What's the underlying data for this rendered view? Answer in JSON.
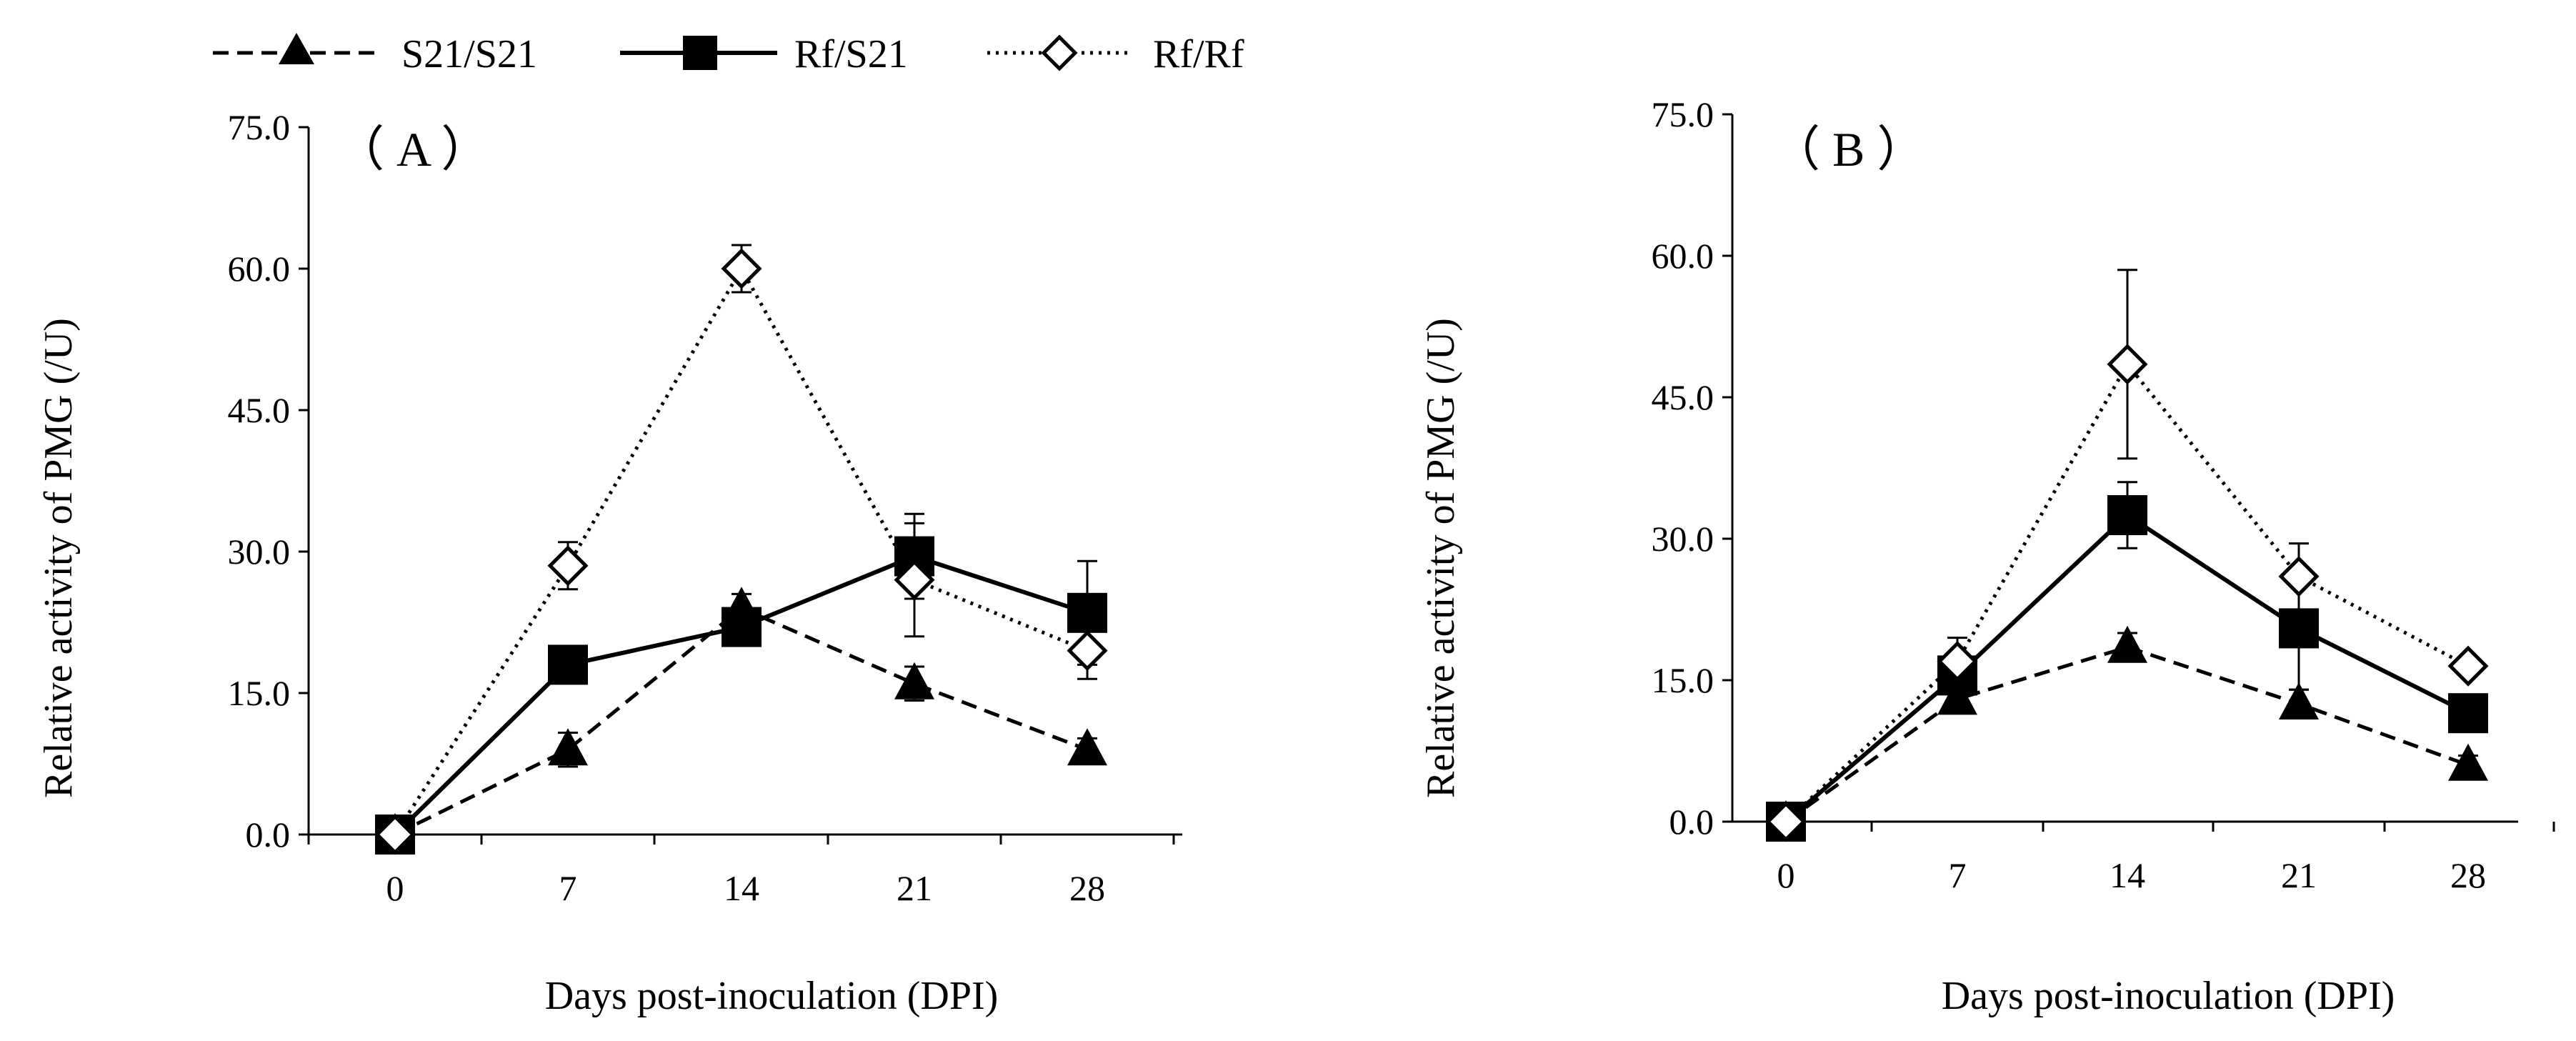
{
  "legend": [
    {
      "name": "S21/S21"
    },
    {
      "name": "Rf/S21"
    },
    {
      "name": "Rf/Rf"
    }
  ],
  "chart_data": [
    {
      "type": "line",
      "panel_label": "（ A ）",
      "xlabel": "Days post-inoculation (DPI)",
      "ylabel": "Relative activity of  PMG (/U)",
      "x": [
        0,
        7,
        14,
        21,
        28
      ],
      "x_tick_labels": [
        "0",
        "7",
        "14",
        "21",
        "28"
      ],
      "y_tick_labels": [
        "0.0",
        "15.0",
        "30.0",
        "45.0",
        "60.0",
        "75.0"
      ],
      "ylim": [
        0,
        75
      ],
      "series": [
        {
          "name": "S21/S21",
          "values": [
            0,
            9,
            24,
            16,
            9
          ],
          "errors": [
            0,
            1.8,
            1.5,
            1.8,
            1.2
          ]
        },
        {
          "name": "Rf/S21",
          "values": [
            0,
            18,
            22,
            29.5,
            23.5
          ],
          "errors": [
            0,
            1.0,
            1.5,
            4.5,
            5.5
          ]
        },
        {
          "name": "Rf/Rf",
          "values": [
            0,
            28.5,
            60,
            27,
            19.5
          ],
          "errors": [
            0,
            2.5,
            2.5,
            6.0,
            3.0
          ]
        }
      ]
    },
    {
      "type": "line",
      "panel_label": "（ B ）",
      "xlabel": "Days post-inoculation (DPI)",
      "ylabel": "Relative activity of  PMG (/U)",
      "x": [
        0,
        7,
        14,
        21,
        28
      ],
      "x_tick_labels": [
        "0",
        "7",
        "14",
        "21",
        "28"
      ],
      "y_tick_labels": [
        "0.0",
        "15.0",
        "30.0",
        "45.0",
        "60.0",
        "75.0"
      ],
      "ylim": [
        0,
        75
      ],
      "series": [
        {
          "name": "S21/S21",
          "values": [
            0,
            13,
            18.5,
            12.5,
            6
          ],
          "errors": [
            0,
            1.5,
            1.5,
            1.5,
            1.0
          ]
        },
        {
          "name": "Rf/S21",
          "values": [
            0,
            15.5,
            32.5,
            20.5,
            11.5
          ],
          "errors": [
            0,
            2.5,
            3.5,
            6.5,
            1.5
          ]
        },
        {
          "name": "Rf/Rf",
          "values": [
            0,
            17,
            48.5,
            26,
            16.5
          ],
          "errors": [
            0,
            2.5,
            10.0,
            3.5,
            1.0
          ]
        }
      ]
    }
  ],
  "colors": {
    "ink": "#000000",
    "background": "#ffffff"
  }
}
